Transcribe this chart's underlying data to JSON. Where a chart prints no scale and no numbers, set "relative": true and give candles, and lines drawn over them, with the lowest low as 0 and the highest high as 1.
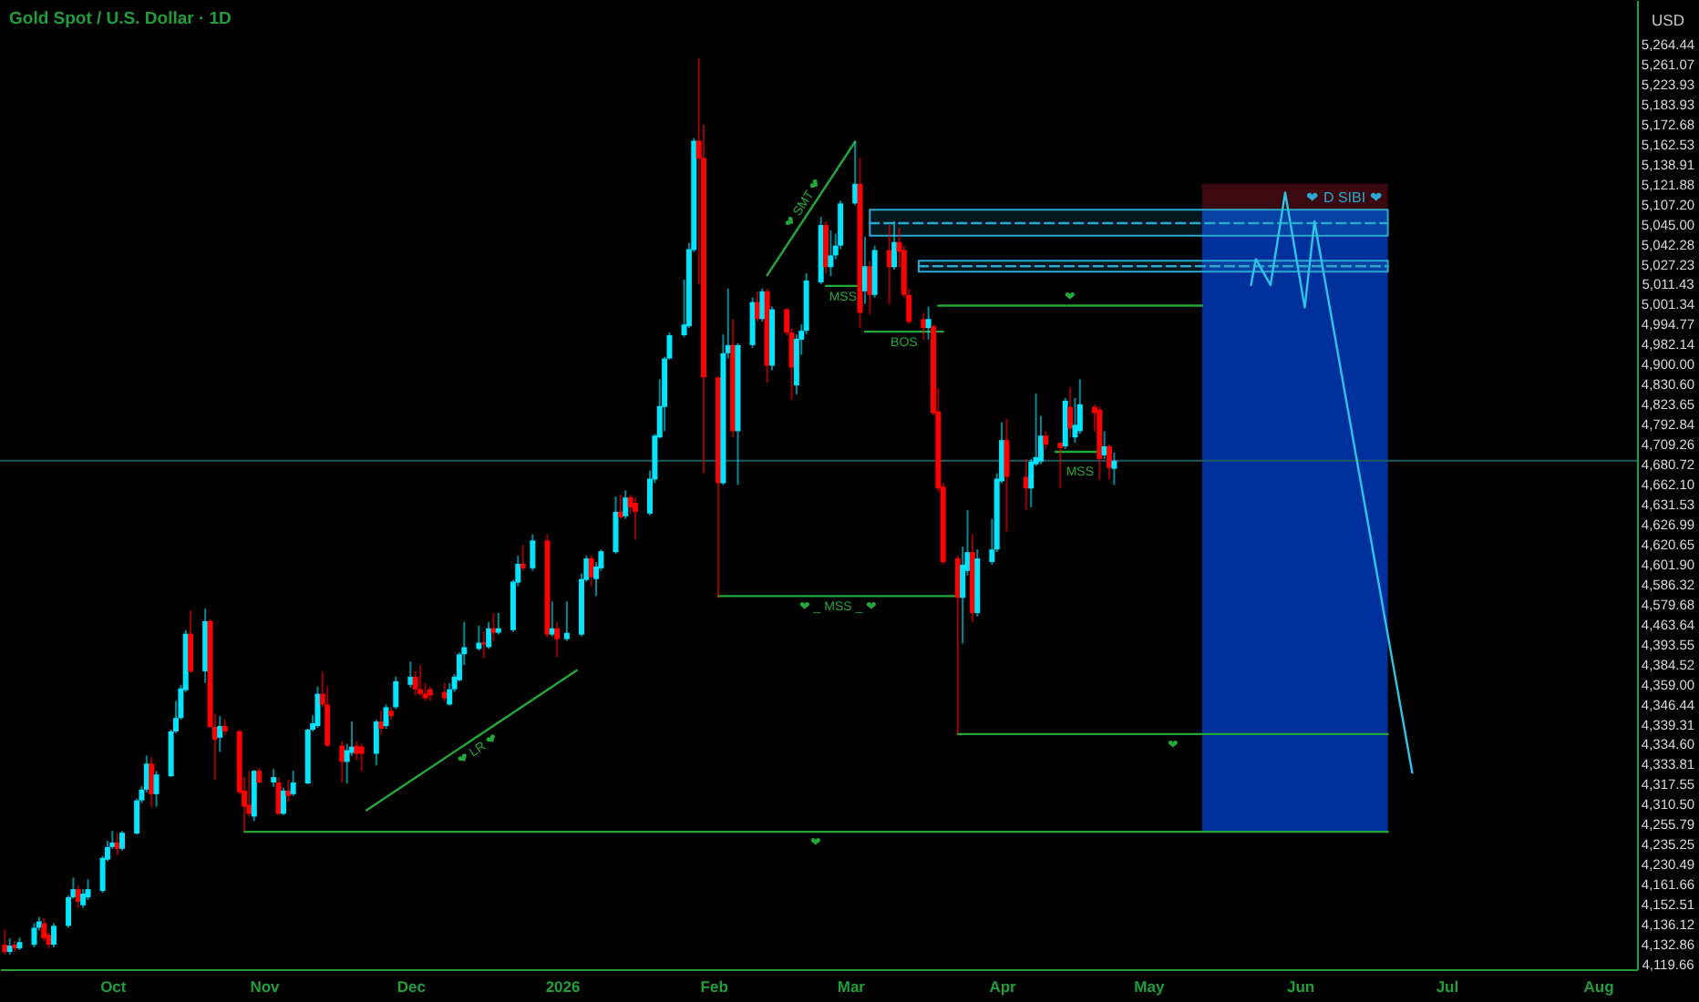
{
  "chart_data": {
    "type": "candlestick",
    "title": "Gold Spot / U.S. Dollar · 1D",
    "ylabel": "USD",
    "relative": true,
    "xlim": [
      "2025-09-08",
      "2026-08-09"
    ],
    "xticks": [
      {
        "value": "2025-10-01",
        "label": "Oct"
      },
      {
        "value": "2025-11-01",
        "label": "Nov"
      },
      {
        "value": "2025-12-01",
        "label": "Dec"
      },
      {
        "value": "2026-01-01",
        "label": "2026"
      },
      {
        "value": "2026-02-01",
        "label": "Feb"
      },
      {
        "value": "2026-03-01",
        "label": "Mar"
      },
      {
        "value": "2026-04-01",
        "label": "Apr"
      },
      {
        "value": "2026-05-01",
        "label": "May"
      },
      {
        "value": "2026-06-01",
        "label": "Jun"
      },
      {
        "value": "2026-07-01",
        "label": "Jul"
      },
      {
        "value": "2026-08-01",
        "label": "Aug"
      }
    ],
    "x": [
      "2025-09-09",
      "2025-09-10",
      "2025-09-11",
      "2025-09-12",
      "2025-09-15",
      "2025-09-16",
      "2025-09-17",
      "2025-09-18",
      "2025-09-19",
      "2025-09-22",
      "2025-09-23",
      "2025-09-24",
      "2025-09-25",
      "2025-09-26",
      "2025-09-29",
      "2025-09-30",
      "2025-10-01",
      "2025-10-02",
      "2025-10-03",
      "2025-10-06",
      "2025-10-07",
      "2025-10-08",
      "2025-10-09",
      "2025-10-10",
      "2025-10-13",
      "2025-10-14",
      "2025-10-15",
      "2025-10-16",
      "2025-10-17",
      "2025-10-20",
      "2025-10-21",
      "2025-10-22",
      "2025-10-23",
      "2025-10-24",
      "2025-10-27",
      "2025-10-28",
      "2025-10-29",
      "2025-10-30",
      "2025-10-31",
      "2025-11-03",
      "2025-11-04",
      "2025-11-05",
      "2025-11-06",
      "2025-11-07",
      "2025-11-10",
      "2025-11-11",
      "2025-11-12",
      "2025-11-13",
      "2025-11-14",
      "2025-11-17",
      "2025-11-18",
      "2025-11-19",
      "2025-11-20",
      "2025-11-21",
      "2025-11-24",
      "2025-11-25",
      "2025-11-26",
      "2025-11-27",
      "2025-11-28",
      "2025-12-01",
      "2025-12-02",
      "2025-12-03",
      "2025-12-04",
      "2025-12-05",
      "2025-12-08",
      "2025-12-09",
      "2025-12-10",
      "2025-12-11",
      "2025-12-12",
      "2025-12-15",
      "2025-12-16",
      "2025-12-17",
      "2025-12-18",
      "2025-12-19",
      "2025-12-22",
      "2025-12-23",
      "2025-12-24",
      "2025-12-26",
      "2025-12-29",
      "2025-12-30",
      "2025-12-31",
      "2026-01-02",
      "2026-01-05",
      "2026-01-06",
      "2026-01-07",
      "2026-01-08",
      "2026-01-09",
      "2026-01-12",
      "2026-01-13",
      "2026-01-14",
      "2026-01-15",
      "2026-01-16",
      "2026-01-19",
      "2026-01-20",
      "2026-01-21",
      "2026-01-22",
      "2026-01-23",
      "2026-01-26",
      "2026-01-27",
      "2026-01-28",
      "2026-01-29",
      "2026-01-30",
      "2026-02-02",
      "2026-02-03",
      "2026-02-04",
      "2026-02-05",
      "2026-02-06",
      "2026-02-09",
      "2026-02-10",
      "2026-02-11",
      "2026-02-12",
      "2026-02-13",
      "2026-02-16",
      "2026-02-17",
      "2026-02-18",
      "2026-02-19",
      "2026-02-20",
      "2026-02-23",
      "2026-02-24",
      "2026-02-25",
      "2026-02-26",
      "2026-02-27",
      "2026-03-02",
      "2026-03-03",
      "2026-03-04",
      "2026-03-05",
      "2026-03-06",
      "2026-03-09",
      "2026-03-10",
      "2026-03-11",
      "2026-03-12",
      "2026-03-13",
      "2026-03-16",
      "2026-03-17",
      "2026-03-18",
      "2026-03-19",
      "2026-03-20",
      "2026-03-23",
      "2026-03-24",
      "2026-03-25",
      "2026-03-26",
      "2026-03-27",
      "2026-03-30",
      "2026-03-31",
      "2026-04-01",
      "2026-04-02",
      "2026-04-06",
      "2026-04-07",
      "2026-04-08",
      "2026-04-09",
      "2026-04-10",
      "2026-04-13",
      "2026-04-14",
      "2026-04-15",
      "2026-04-16",
      "2026-04-17",
      "2026-04-20",
      "2026-04-21",
      "2026-04-22",
      "2026-04-23",
      "2026-04-24"
    ],
    "ohlc": [
      [
        0.011,
        0.028,
        0,
        0.003
      ],
      [
        0.003,
        0.018,
        0,
        0.01
      ],
      [
        0.011,
        0.015,
        0.003,
        0.007
      ],
      [
        0.007,
        0.019,
        0.005,
        0.014
      ],
      [
        0.011,
        0.035,
        0.008,
        0.03
      ],
      [
        0.03,
        0.042,
        0.027,
        0.037
      ],
      [
        0.035,
        0.041,
        0.015,
        0.018
      ],
      [
        0.022,
        0.025,
        0.007,
        0.011
      ],
      [
        0.011,
        0.035,
        0.008,
        0.032
      ],
      [
        0.032,
        0.066,
        0.03,
        0.064
      ],
      [
        0.064,
        0.086,
        0.062,
        0.073
      ],
      [
        0.073,
        0.077,
        0.052,
        0.059
      ],
      [
        0.055,
        0.073,
        0.052,
        0.068
      ],
      [
        0.064,
        0.084,
        0.061,
        0.073
      ],
      [
        0.071,
        0.11,
        0.069,
        0.108
      ],
      [
        0.106,
        0.127,
        0.104,
        0.12
      ],
      [
        0.12,
        0.138,
        0.118,
        0.125
      ],
      [
        0.125,
        0.136,
        0.111,
        0.118
      ],
      [
        0.118,
        0.138,
        0.116,
        0.136
      ],
      [
        0.135,
        0.174,
        0.134,
        0.172
      ],
      [
        0.172,
        0.188,
        0.169,
        0.184
      ],
      [
        0.184,
        0.222,
        0.181,
        0.213
      ],
      [
        0.213,
        0.22,
        0.164,
        0.179
      ],
      [
        0.179,
        0.205,
        0.165,
        0.201
      ],
      [
        0.199,
        0.251,
        0.198,
        0.249
      ],
      [
        0.249,
        0.283,
        0.247,
        0.264
      ],
      [
        0.264,
        0.301,
        0.262,
        0.297
      ],
      [
        0.295,
        0.362,
        0.293,
        0.358
      ],
      [
        0.358,
        0.384,
        0.314,
        0.316
      ],
      [
        0.316,
        0.386,
        0.303,
        0.372
      ],
      [
        0.372,
        0.374,
        0.253,
        0.254
      ],
      [
        0.254,
        0.269,
        0.195,
        0.24
      ],
      [
        0.242,
        0.266,
        0.226,
        0.255
      ],
      [
        0.255,
        0.262,
        0.245,
        0.249
      ],
      [
        0.249,
        0.251,
        0.179,
        0.181
      ],
      [
        0.183,
        0.198,
        0.137,
        0.165
      ],
      [
        0.167,
        0.205,
        0.154,
        0.157
      ],
      [
        0.154,
        0.206,
        0.149,
        0.205
      ],
      [
        0.205,
        0.208,
        0.191,
        0.192
      ],
      [
        0.192,
        0.207,
        0.187,
        0.198
      ],
      [
        0.192,
        0.198,
        0.156,
        0.157
      ],
      [
        0.157,
        0.186,
        0.156,
        0.183
      ],
      [
        0.183,
        0.195,
        0.171,
        0.177
      ],
      [
        0.179,
        0.205,
        0.177,
        0.192
      ],
      [
        0.191,
        0.252,
        0.19,
        0.251
      ],
      [
        0.251,
        0.267,
        0.249,
        0.258
      ],
      [
        0.255,
        0.299,
        0.253,
        0.291
      ],
      [
        0.291,
        0.316,
        0.276,
        0.279
      ],
      [
        0.279,
        0.299,
        0.232,
        0.233
      ],
      [
        0.233,
        0.238,
        0.192,
        0.215
      ],
      [
        0.215,
        0.235,
        0.191,
        0.228
      ],
      [
        0.225,
        0.26,
        0.222,
        0.232
      ],
      [
        0.233,
        0.238,
        0.217,
        0.224
      ],
      [
        0.232,
        0.235,
        0.205,
        0.224
      ],
      [
        0.224,
        0.262,
        0.211,
        0.26
      ],
      [
        0.26,
        0.272,
        0.245,
        0.252
      ],
      [
        0.255,
        0.279,
        0.252,
        0.276
      ],
      [
        0.272,
        0.276,
        0.262,
        0.266
      ],
      [
        0.276,
        0.31,
        0.274,
        0.305
      ],
      [
        0.301,
        0.327,
        0.298,
        0.31
      ],
      [
        0.31,
        0.316,
        0.289,
        0.296
      ],
      [
        0.296,
        0.323,
        0.289,
        0.291
      ],
      [
        0.291,
        0.303,
        0.283,
        0.286
      ],
      [
        0.296,
        0.299,
        0.283,
        0.289
      ],
      [
        0.293,
        0.303,
        0.283,
        0.286
      ],
      [
        0.279,
        0.303,
        0.278,
        0.296
      ],
      [
        0.296,
        0.313,
        0.293,
        0.31
      ],
      [
        0.306,
        0.337,
        0.305,
        0.335
      ],
      [
        0.335,
        0.371,
        0.323,
        0.343
      ],
      [
        0.341,
        0.367,
        0.339,
        0.348
      ],
      [
        0.348,
        0.36,
        0.33,
        0.346
      ],
      [
        0.343,
        0.371,
        0.341,
        0.364
      ],
      [
        0.364,
        0.381,
        0.35,
        0.359
      ],
      [
        0.359,
        0.381,
        0.357,
        0.364
      ],
      [
        0.362,
        0.418,
        0.36,
        0.416
      ],
      [
        0.415,
        0.445,
        0.411,
        0.436
      ],
      [
        0.436,
        0.457,
        0.428,
        0.431
      ],
      [
        0.431,
        0.469,
        0.428,
        0.462
      ],
      [
        0.462,
        0.469,
        0.354,
        0.357
      ],
      [
        0.357,
        0.394,
        0.355,
        0.364
      ],
      [
        0.364,
        0.371,
        0.332,
        0.352
      ],
      [
        0.352,
        0.394,
        0.35,
        0.359
      ],
      [
        0.357,
        0.425,
        0.355,
        0.419
      ],
      [
        0.418,
        0.445,
        0.416,
        0.442
      ],
      [
        0.442,
        0.445,
        0.411,
        0.421
      ],
      [
        0.419,
        0.438,
        0.4,
        0.433
      ],
      [
        0.431,
        0.452,
        0.428,
        0.45
      ],
      [
        0.449,
        0.511,
        0.447,
        0.494
      ],
      [
        0.494,
        0.513,
        0.486,
        0.488
      ],
      [
        0.489,
        0.518,
        0.486,
        0.51
      ],
      [
        0.51,
        0.513,
        0.492,
        0.499
      ],
      [
        0.504,
        0.51,
        0.463,
        0.494
      ],
      [
        0.492,
        0.54,
        0.49,
        0.531
      ],
      [
        0.53,
        0.581,
        0.526,
        0.579
      ],
      [
        0.577,
        0.642,
        0.576,
        0.612
      ],
      [
        0.611,
        0.667,
        0.584,
        0.665
      ],
      [
        0.665,
        0.694,
        0.664,
        0.691
      ],
      [
        0.691,
        0.753,
        0.689,
        0.703
      ],
      [
        0.701,
        0.794,
        0.699,
        0.787
      ],
      [
        0.786,
        0.911,
        0.784,
        0.908
      ],
      [
        0.908,
        1,
        0.748,
        0.888
      ],
      [
        0.889,
        0.926,
        0.537,
        0.644
      ],
      [
        0.644,
        0.645,
        0.398,
        0.526
      ],
      [
        0.526,
        0.692,
        0.524,
        0.671
      ],
      [
        0.671,
        0.743,
        0.665,
        0.68
      ],
      [
        0.68,
        0.709,
        0.577,
        0.584
      ],
      [
        0.584,
        0.682,
        0.524,
        0.68
      ],
      [
        0.68,
        0.733,
        0.677,
        0.728
      ],
      [
        0.728,
        0.74,
        0.706,
        0.709
      ],
      [
        0.709,
        0.743,
        0.706,
        0.74
      ],
      [
        0.74,
        0.743,
        0.638,
        0.657
      ],
      [
        0.657,
        0.723,
        0.652,
        0.72
      ],
      [
        0.72,
        0.721,
        0.691,
        0.694
      ],
      [
        0.694,
        0.699,
        0.619,
        0.655
      ],
      [
        0.635,
        0.692,
        0.625,
        0.687
      ],
      [
        0.686,
        0.703,
        0.669,
        0.696
      ],
      [
        0.696,
        0.76,
        0.692,
        0.752
      ],
      [
        0.75,
        0.823,
        0.748,
        0.814
      ],
      [
        0.814,
        0.818,
        0.76,
        0.767
      ],
      [
        0.767,
        0.808,
        0.757,
        0.78
      ],
      [
        0.78,
        0.804,
        0.776,
        0.791
      ],
      [
        0.791,
        0.841,
        0.787,
        0.838
      ],
      [
        0.838,
        0.907,
        0.836,
        0.86
      ],
      [
        0.86,
        0.889,
        0.699,
        0.716
      ],
      [
        0.74,
        0.801,
        0.726,
        0.768
      ],
      [
        0.768,
        0.774,
        0.714,
        0.736
      ],
      [
        0.736,
        0.791,
        0.733,
        0.786
      ],
      [
        0.786,
        0.814,
        0.725,
        0.767
      ],
      [
        0.767,
        0.818,
        0.764,
        0.795
      ],
      [
        0.795,
        0.811,
        0.767,
        0.784
      ],
      [
        0.786,
        0.791,
        0.733,
        0.736
      ],
      [
        0.736,
        0.743,
        0.703,
        0.706
      ],
      [
        0.709,
        0.716,
        0.686,
        0.699
      ],
      [
        0.699,
        0.723,
        0.686,
        0.709
      ],
      [
        0.701,
        0.703,
        0.601,
        0.604
      ],
      [
        0.606,
        0.632,
        0.516,
        0.52
      ],
      [
        0.522,
        0.526,
        0.435,
        0.438
      ],
      [
        0.442,
        0.445,
        0.246,
        0.398
      ],
      [
        0.398,
        0.455,
        0.347,
        0.435
      ],
      [
        0.428,
        0.496,
        0.423,
        0.449
      ],
      [
        0.449,
        0.469,
        0.371,
        0.381
      ],
      [
        0.381,
        0.452,
        0.377,
        0.442
      ],
      [
        0.438,
        0.486,
        0.435,
        0.452
      ],
      [
        0.452,
        0.537,
        0.449,
        0.531
      ],
      [
        0.528,
        0.594,
        0.526,
        0.574
      ],
      [
        0.574,
        0.598,
        0.472,
        0.533
      ],
      [
        0.533,
        0.553,
        0.496,
        0.52
      ],
      [
        0.52,
        0.553,
        0.499,
        0.55
      ],
      [
        0.547,
        0.626,
        0.545,
        0.555
      ],
      [
        0.55,
        0.601,
        0.547,
        0.579
      ],
      [
        0.579,
        0.584,
        0.564,
        0.569
      ],
      [
        0.571,
        0.572,
        0.52,
        0.565
      ],
      [
        0.567,
        0.621,
        0.564,
        0.618
      ],
      [
        0.611,
        0.633,
        0.577,
        0.587
      ],
      [
        0.577,
        0.621,
        0.571,
        0.591
      ],
      [
        0.584,
        0.642,
        0.581,
        0.614
      ],
      [
        0.611,
        0.614,
        0.584,
        0.604
      ],
      [
        0.608,
        0.612,
        0.53,
        0.553
      ],
      [
        0.557,
        0.584,
        0.553,
        0.567
      ],
      [
        0.567,
        0.569,
        0.53,
        0.543
      ],
      [
        0.542,
        0.56,
        0.524,
        0.551
      ]
    ],
    "colors": [
      "#ff0000",
      "#00e5ff",
      "#ff0000",
      "#00e5ff",
      "#00e5ff",
      "#00e5ff",
      "#ff0000",
      "#ff0000",
      "#00e5ff",
      "#00e5ff",
      "#00e5ff",
      "#ff0000",
      "#00e5ff",
      "#00e5ff",
      "#00e5ff",
      "#00e5ff",
      "#00e5ff",
      "#ff0000",
      "#00e5ff",
      "#00e5ff",
      "#00e5ff",
      "#00e5ff",
      "#ff0000",
      "#00e5ff",
      "#00e5ff",
      "#00e5ff",
      "#00e5ff",
      "#00e5ff",
      "#ff0000",
      "#00e5ff",
      "#ff0000",
      "#ff0000",
      "#00e5ff",
      "#ff0000",
      "#ff0000",
      "#ff0000",
      "#ff0000",
      "#00e5ff",
      "#ff0000",
      "#00e5ff",
      "#ff0000",
      "#00e5ff",
      "#ff0000",
      "#00e5ff",
      "#00e5ff",
      "#00e5ff",
      "#00e5ff",
      "#ff0000",
      "#ff0000",
      "#ff0000",
      "#00e5ff",
      "#00e5ff",
      "#ff0000",
      "#ff0000",
      "#00e5ff",
      "#ff0000",
      "#00e5ff",
      "#ff0000",
      "#00e5ff",
      "#00e5ff",
      "#ff0000",
      "#ff0000",
      "#ff0000",
      "#ff0000",
      "#ff0000",
      "#00e5ff",
      "#00e5ff",
      "#00e5ff",
      "#00e5ff",
      "#00e5ff",
      "#ff0000",
      "#00e5ff",
      "#ff0000",
      "#00e5ff",
      "#00e5ff",
      "#00e5ff",
      "#ff0000",
      "#00e5ff",
      "#ff0000",
      "#00e5ff",
      "#ff0000",
      "#00e5ff",
      "#00e5ff",
      "#00e5ff",
      "#ff0000",
      "#00e5ff",
      "#00e5ff",
      "#00e5ff",
      "#ff0000",
      "#00e5ff",
      "#ff0000",
      "#ff0000",
      "#00e5ff",
      "#00e5ff",
      "#00e5ff",
      "#00e5ff",
      "#00e5ff",
      "#00e5ff",
      "#00e5ff",
      "#00e5ff",
      "#ff0000",
      "#ff0000",
      "#ff0000",
      "#00e5ff",
      "#00e5ff",
      "#ff0000",
      "#00e5ff",
      "#00e5ff",
      "#ff0000",
      "#00e5ff",
      "#ff0000",
      "#00e5ff",
      "#ff0000",
      "#ff0000",
      "#00e5ff",
      "#00e5ff",
      "#00e5ff",
      "#00e5ff",
      "#ff0000",
      "#00e5ff",
      "#00e5ff",
      "#00e5ff",
      "#00e5ff",
      "#ff0000",
      "#00e5ff",
      "#ff0000",
      "#00e5ff",
      "#ff0000",
      "#00e5ff",
      "#ff0000",
      "#ff0000",
      "#ff0000",
      "#ff0000",
      "#00e5ff",
      "#ff0000",
      "#ff0000",
      "#ff0000",
      "#ff0000",
      "#00e5ff",
      "#00e5ff",
      "#ff0000",
      "#00e5ff",
      "#00e5ff",
      "#00e5ff",
      "#00e5ff",
      "#ff0000",
      "#ff0000",
      "#00e5ff",
      "#00e5ff",
      "#00e5ff",
      "#ff0000",
      "#ff0000",
      "#00e5ff",
      "#ff0000",
      "#00e5ff",
      "#00e5ff",
      "#ff0000",
      "#ff0000",
      "#00e5ff",
      "#ff0000",
      "#00e5ff"
    ],
    "series": [
      {
        "type": "line",
        "x": [
          "2026-05-12",
          "2026-06-19"
        ],
        "values": [
          null,
          null
        ],
        "lower": [
          0.83,
          0.83
        ],
        "upper": [
          0.86,
          0.86
        ],
        "color": "#3b0a10"
      },
      {
        "type": "line",
        "x": [
          "2026-05-12",
          "2026-06-19"
        ],
        "values": [
          null,
          null
        ],
        "lower": [
          0.137,
          0.137
        ],
        "upper": [
          0.83,
          0.83
        ],
        "color": "#00309c"
      },
      {
        "type": "line",
        "name": "❤ D SIBI ❤",
        "x": [
          "2026-03-05",
          "2026-06-19"
        ],
        "values": [
          0.816,
          0.816
        ],
        "lower": [
          0.802,
          0.802
        ],
        "upper": [
          0.831,
          0.831
        ],
        "color": "#29a9d0",
        "line_style": "dashed"
      },
      {
        "type": "line",
        "x": [
          "2026-03-15",
          "2026-06-19"
        ],
        "values": [
          0.768,
          0.768
        ],
        "lower": [
          0.762,
          0.762
        ],
        "upper": [
          0.774,
          0.774
        ],
        "color": "#29a9d0",
        "line_style": "dashed"
      },
      {
        "type": "line",
        "name": "❤ LR ❤",
        "x": [
          "2025-11-22",
          "2026-01-04"
        ],
        "values": [
          0.161,
          0.317
        ],
        "color": "#22a83a"
      },
      {
        "type": "line",
        "name": "❤ SMT ❤",
        "x": [
          "2026-02-12",
          "2026-03-02"
        ],
        "values": [
          0.758,
          0.907
        ],
        "color": "#22a83a"
      },
      {
        "type": "line",
        "name": "MSS",
        "x": [
          "2026-02-24",
          "2026-03-03"
        ],
        "values": [
          0.746,
          0.746
        ],
        "color": "#22a83a"
      },
      {
        "type": "line",
        "name": "BOS",
        "x": [
          "2026-03-04",
          "2026-03-20"
        ],
        "values": [
          0.695,
          0.695
        ],
        "color": "#22a83a"
      },
      {
        "type": "line",
        "name": "❤",
        "x": [
          "2026-03-19",
          "2026-05-12"
        ],
        "values": [
          0.724,
          0.724
        ],
        "color": "#22a83a"
      },
      {
        "type": "line",
        "name": "❤ _ MSS _ ❤",
        "x": [
          "2026-02-02",
          "2026-03-23"
        ],
        "values": [
          0.4,
          0.4
        ],
        "color": "#22a83a"
      },
      {
        "type": "line",
        "name": "MSS",
        "x": [
          "2026-04-12",
          "2026-04-22"
        ],
        "values": [
          0.561,
          0.561
        ],
        "color": "#22a83a"
      },
      {
        "type": "line",
        "name": "❤",
        "x": [
          "2026-03-23",
          "2026-06-19"
        ],
        "values": [
          0.246,
          0.246
        ],
        "color": "#22a83a"
      },
      {
        "type": "line",
        "name": "❤",
        "x": [
          "2025-10-28",
          "2026-06-19"
        ],
        "values": [
          0.137,
          0.137
        ],
        "color": "#22a83a"
      },
      {
        "type": "line",
        "x": [
          "2026-05-22",
          "2026-05-23",
          "2026-05-26",
          "2026-05-29",
          "2026-06-02",
          "2026-06-04",
          "2026-06-24"
        ],
        "values": [
          0.747,
          0.776,
          0.747,
          0.85,
          0.722,
          0.818,
          0.203
        ],
        "color": "#2ec4e6"
      }
    ],
    "ref_lines": [
      {
        "axis": "y",
        "value": 0.551,
        "color": "#1e5a62"
      }
    ],
    "annotations": [
      "5,264.44",
      "5,261.07",
      "5,223.93",
      "5,183.93",
      "5,172.68",
      "5,162.53",
      "5,138.91",
      "5,121.88",
      "5,107.20",
      "5,045.00",
      "5,042.28",
      "5,027.23",
      "5,011.43",
      "5,001.34",
      "4,994.77",
      "4,982.14",
      "4,900.00",
      "4,830.60",
      "4,823.65",
      "4,792.84",
      "4,709.26",
      "4,680.72",
      "4,662.10",
      "4,631.53",
      "4,626.99",
      "4,620.65",
      "4,601.90",
      "4,586.32",
      "4,579.68",
      "4,463.64",
      "4,393.55",
      "4,384.52",
      "4,359.00",
      "4,346.44",
      "4,339.31",
      "4,334.60",
      "4,333.81",
      "4,317.55",
      "4,310.50",
      "4,255.79",
      "4,235.25",
      "4,230.49",
      "4,161.66",
      "4,152.51",
      "4,136.12",
      "4,132.86",
      "4,119.66"
    ]
  }
}
